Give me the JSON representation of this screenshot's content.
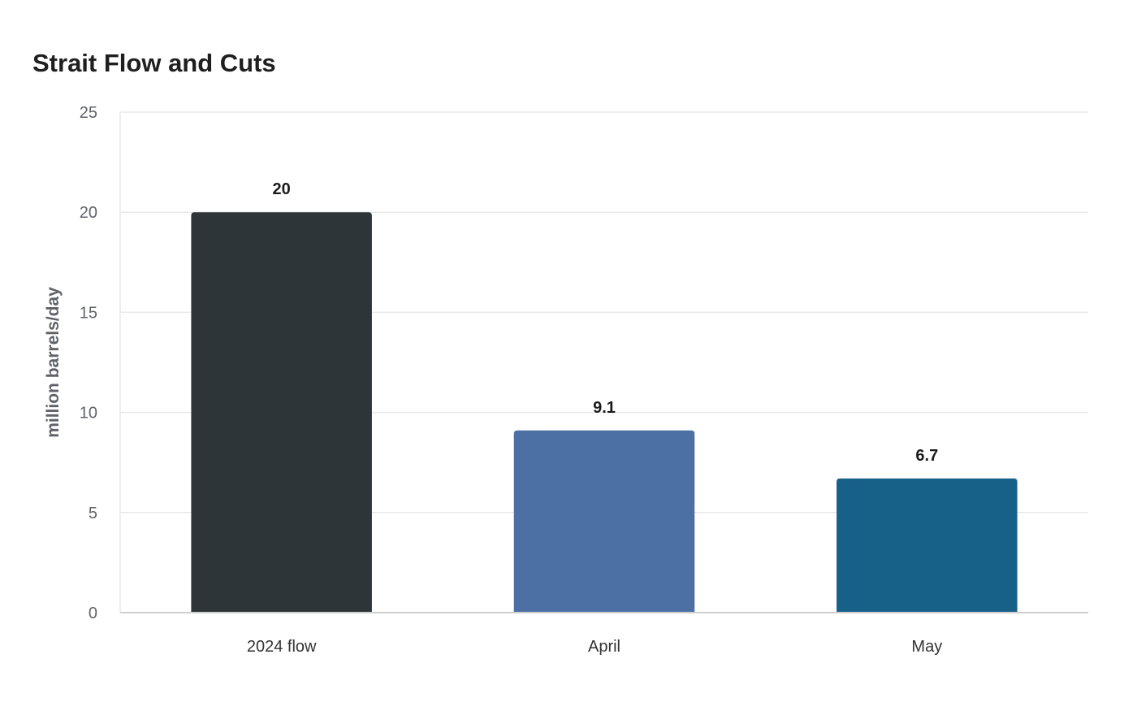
{
  "chart_data": {
    "type": "bar",
    "title": "Strait Flow and Cuts",
    "xlabel": "",
    "ylabel": "million barrels/day",
    "categories": [
      "2024 flow",
      "April",
      "May"
    ],
    "values": [
      20,
      9.1,
      6.7
    ],
    "data_labels": [
      "20",
      "9.1",
      "6.7"
    ],
    "bar_colors": [
      "#2e3538",
      "#4c70a4",
      "#176087"
    ],
    "ylim": [
      0,
      25
    ],
    "yticks": [
      0,
      5,
      10,
      15,
      20,
      25
    ],
    "grid": true,
    "legend": "none"
  },
  "colors": {
    "grid": "#e8e8e8",
    "axis": "#cfcfcf"
  }
}
